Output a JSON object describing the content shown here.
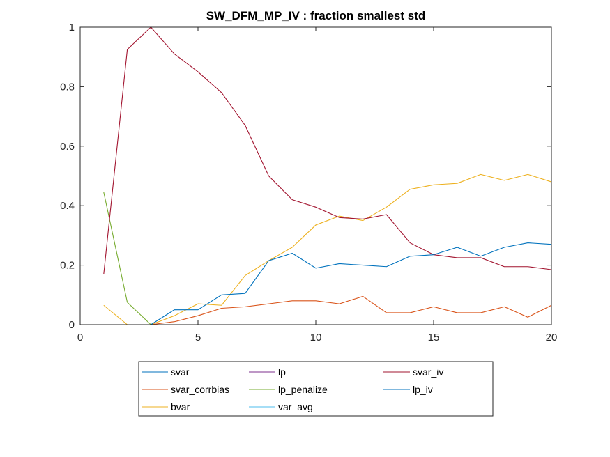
{
  "chart_data": {
    "type": "line",
    "title": "SW_DFM_MP_IV : fraction smallest std",
    "xlabel": "",
    "ylabel": "",
    "xlim": [
      0,
      20
    ],
    "ylim": [
      0,
      1
    ],
    "xticks": [
      0,
      5,
      10,
      15,
      20
    ],
    "yticks": [
      0,
      0.2,
      0.4,
      0.6,
      0.8,
      1
    ],
    "xtick_labels": [
      "0",
      "5",
      "10",
      "15",
      "20"
    ],
    "ytick_labels": [
      "0",
      "0.2",
      "0.4",
      "0.6",
      "0.8",
      "1"
    ],
    "grid": false,
    "legend_placement": "bottom-outside",
    "x": [
      1,
      2,
      3,
      4,
      5,
      6,
      7,
      8,
      9,
      10,
      11,
      12,
      13,
      14,
      15,
      16,
      17,
      18,
      19,
      20
    ],
    "series": [
      {
        "name": "svar",
        "color": "#0072BD",
        "values": [
          0,
          0,
          0,
          0,
          0,
          0,
          0,
          0,
          0,
          0,
          0,
          0,
          0,
          0,
          0,
          0,
          0,
          0,
          0,
          0
        ]
      },
      {
        "name": "svar_corrbias",
        "color": "#D95319",
        "values": [
          0,
          0,
          0,
          0.01,
          0.03,
          0.055,
          0.06,
          0.07,
          0.08,
          0.08,
          0.07,
          0.095,
          0.04,
          0.04,
          0.06,
          0.04,
          0.04,
          0.06,
          0.025,
          0.065
        ]
      },
      {
        "name": "bvar",
        "color": "#EDB120",
        "values": [
          0.065,
          0,
          0,
          0.03,
          0.07,
          0.065,
          0.165,
          0.215,
          0.26,
          0.335,
          0.365,
          0.35,
          0.395,
          0.455,
          0.47,
          0.475,
          0.505,
          0.485,
          0.505,
          0.48
        ]
      },
      {
        "name": "lp",
        "color": "#7E2F8E",
        "values": [
          0,
          0,
          0,
          0,
          0,
          0,
          0,
          0,
          0,
          0,
          0,
          0,
          0,
          0,
          0,
          0,
          0,
          0,
          0,
          0
        ]
      },
      {
        "name": "lp_penalize",
        "color": "#77AC30",
        "values": [
          0.445,
          0.075,
          0,
          0,
          0,
          0,
          0,
          0,
          0,
          0,
          0,
          0,
          0,
          0,
          0,
          0,
          0,
          0,
          0,
          0
        ]
      },
      {
        "name": "var_avg",
        "color": "#4DBEEE",
        "values": [
          0,
          0,
          0,
          0,
          0,
          0,
          0,
          0,
          0,
          0,
          0,
          0,
          0,
          0,
          0,
          0,
          0,
          0,
          0,
          0
        ]
      },
      {
        "name": "svar_iv",
        "color": "#A2142F",
        "values": [
          0.17,
          0.925,
          1.0,
          0.91,
          0.85,
          0.78,
          0.67,
          0.5,
          0.42,
          0.395,
          0.36,
          0.355,
          0.37,
          0.275,
          0.235,
          0.225,
          0.225,
          0.195,
          0.195,
          0.185
        ]
      },
      {
        "name": "lp_iv",
        "color": "#0072BD",
        "values": [
          0,
          0,
          0,
          0.05,
          0.05,
          0.1,
          0.105,
          0.215,
          0.24,
          0.19,
          0.205,
          0.2,
          0.195,
          0.23,
          0.235,
          0.26,
          0.23,
          0.26,
          0.275,
          0.27
        ]
      }
    ],
    "legend_order": [
      "svar",
      "lp",
      "svar_iv",
      "svar_corrbias",
      "lp_penalize",
      "lp_iv",
      "bvar",
      "var_avg"
    ]
  }
}
